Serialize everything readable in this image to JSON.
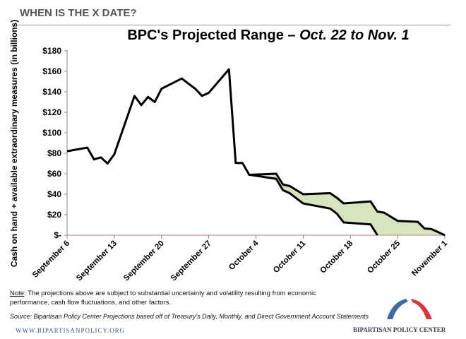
{
  "header": {
    "title": "WHEN IS THE X DATE?"
  },
  "footer": {
    "note_label": "Note",
    "note_text": ": The projections above are subject to substantial uncertainty and volatility resulting from economic performance, cash flow fluctuations, and other factors.",
    "source": "Source: Bipartisan Policy Center Projections based off of Treasury's Daily, Monthly, and Direct Government Account Statements",
    "website": "WWW.BIPARTISANPOLICY.ORG",
    "logo_text": "BIPARTISAN POLICY CENTER"
  },
  "colors": {
    "line": "#000000",
    "range_fill": "#d7e4bd",
    "axis": "#c09a9a",
    "logo_blue": "#3f6aa5",
    "logo_red": "#d9363e"
  },
  "chart_data": {
    "type": "line",
    "title_main": "BPC's Projected Range – ",
    "title_italic": "Oct. 22 to Nov. 1",
    "ylabel": "Cash on hand + available extraordinary measures (in billions)",
    "ylim": [
      0,
      180
    ],
    "yticks": [
      0,
      20,
      40,
      60,
      80,
      100,
      120,
      140,
      160,
      180
    ],
    "ytick_labels": [
      "$-",
      "$20",
      "$40",
      "$60",
      "$80",
      "$100",
      "$120",
      "$140",
      "$160",
      "$180"
    ],
    "xticks": [
      "Sep 6",
      "Sep 13",
      "Sep 20",
      "Sep 27",
      "Oct 4",
      "Oct 11",
      "Oct 18",
      "Oct 25",
      "Nov 1"
    ],
    "xtick_labels": [
      "September 6",
      "September 13",
      "September 20",
      "September 27",
      "October 4",
      "October 11",
      "October 18",
      "October 25",
      "November 1"
    ],
    "grid": false,
    "series": [
      {
        "role": "upper",
        "x": [
          "Sep 6",
          "Sep 9",
          "Sep 10",
          "Sep 11",
          "Sep 12",
          "Sep 13",
          "Sep 16",
          "Sep 17",
          "Sep 18",
          "Sep 19",
          "Sep 20",
          "Sep 23",
          "Sep 25",
          "Sep 26",
          "Sep 27",
          "Sep 30",
          "Oct 1",
          "Oct 2",
          "Oct 3",
          "Oct 7",
          "Oct 8",
          "Oct 9",
          "Oct 11",
          "Oct 15",
          "Oct 16",
          "Oct 17",
          "Oct 21",
          "Oct 22",
          "Oct 23",
          "Oct 25",
          "Oct 28",
          "Oct 29",
          "Oct 30",
          "Nov 1"
        ],
        "values": [
          82,
          85.5,
          74,
          76,
          70,
          79,
          136,
          127,
          135,
          130,
          143,
          153,
          143,
          136,
          139,
          162,
          70.5,
          70.5,
          59,
          60,
          49.5,
          48,
          40,
          41,
          36.5,
          31,
          33,
          23,
          22,
          14,
          13,
          6.5,
          6,
          0
        ]
      },
      {
        "role": "lower",
        "x": [
          "Oct 3",
          "Oct 7",
          "Oct 8",
          "Oct 9",
          "Oct 11",
          "Oct 15",
          "Oct 16",
          "Oct 17",
          "Oct 21",
          "Oct 22"
        ],
        "values": [
          59,
          55,
          44,
          41,
          31,
          26,
          21,
          12.5,
          10.5,
          0
        ]
      }
    ]
  }
}
